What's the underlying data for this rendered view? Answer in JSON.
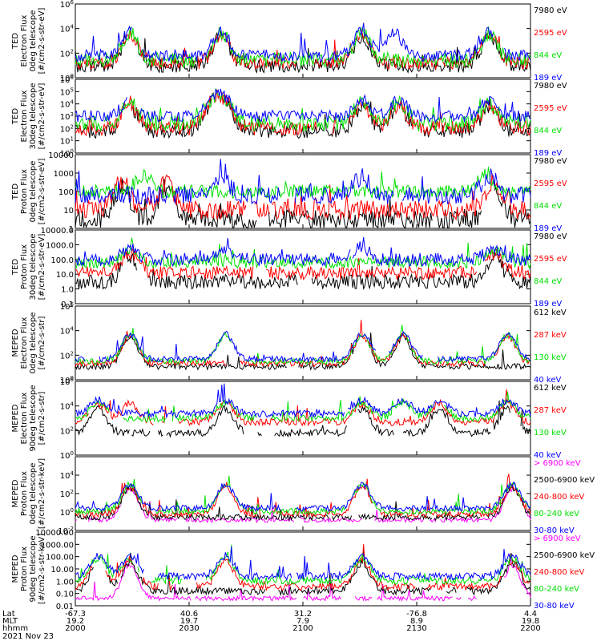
{
  "colors": {
    "black": "#000000",
    "red": "#ff0000",
    "green": "#00e000",
    "blue": "#0000ff",
    "magenta": "#ff00ff"
  },
  "chart_data": [
    {
      "type": "line",
      "scale": "log",
      "ylim": [
        1,
        1000000
      ],
      "ticks": [
        {
          "v": 1,
          "t": "10^0"
        },
        {
          "v": 100,
          "t": "10^2"
        },
        {
          "v": 10000,
          "t": "10^4"
        },
        {
          "v": 1000000,
          "t": "10^6"
        }
      ],
      "ylabel": [
        "TED",
        "Electron Flux",
        "0deg telescope",
        "[#/cm2-s-str-eV]"
      ],
      "series": [
        {
          "name": "7980 eV",
          "color": "black",
          "level": 0.16,
          "peaks": [
            0.12,
            0.32,
            0.63,
            0.91
          ],
          "noise": 0.09,
          "gapProb": 0.22
        },
        {
          "name": "2595 eV",
          "color": "red",
          "level": 0.2,
          "peaks": [
            0.12,
            0.32,
            0.63,
            0.91
          ],
          "noise": 0.09,
          "gapProb": 0.18
        },
        {
          "name": "844 eV",
          "color": "green",
          "level": 0.24,
          "peaks": [
            0.12,
            0.32,
            0.63,
            0.91
          ],
          "noise": 0.1,
          "gapProb": 0.12
        },
        {
          "name": "189 eV",
          "color": "blue",
          "level": 0.3,
          "peaks": [
            0.12,
            0.32,
            0.63,
            0.7,
            0.91
          ],
          "noise": 0.08,
          "gapProb": 0.08
        }
      ]
    },
    {
      "type": "line",
      "scale": "log",
      "ylim": [
        1,
        1000000
      ],
      "ticks": [
        {
          "v": 1,
          "t": "10^0"
        },
        {
          "v": 10,
          "t": "10^1"
        },
        {
          "v": 100,
          "t": "10^2"
        },
        {
          "v": 1000,
          "t": "10^3"
        },
        {
          "v": 10000,
          "t": "10^4"
        },
        {
          "v": 100000,
          "t": "10^5"
        },
        {
          "v": 1000000,
          "t": "10^6"
        }
      ],
      "ylabel": [
        "TED",
        "Electron Flux",
        "30deg telescope",
        "[#/cm2-s-str-eV]"
      ],
      "series": [
        {
          "name": "7980 eV",
          "color": "black",
          "level": 0.3,
          "peaks": [
            0.12,
            0.3,
            0.33,
            0.63,
            0.71,
            0.91
          ],
          "noise": 0.1,
          "gapProb": 0.22
        },
        {
          "name": "2595 eV",
          "color": "red",
          "level": 0.34,
          "peaks": [
            0.12,
            0.3,
            0.33,
            0.63,
            0.71,
            0.91
          ],
          "noise": 0.1,
          "gapProb": 0.18
        },
        {
          "name": "844 eV",
          "color": "green",
          "level": 0.4,
          "peaks": [
            0.12,
            0.3,
            0.33,
            0.63,
            0.71,
            0.91
          ],
          "noise": 0.11,
          "gapProb": 0.12
        },
        {
          "name": "189 eV",
          "color": "blue",
          "level": 0.5,
          "peaks": [
            0.12,
            0.3,
            0.33,
            0.63,
            0.71,
            0.91
          ],
          "noise": 0.08,
          "gapProb": 0.08
        }
      ]
    },
    {
      "type": "line",
      "scale": "log",
      "ylim": [
        1,
        10000
      ],
      "ticks": [
        {
          "v": 1,
          "t": "1"
        },
        {
          "v": 10,
          "t": "10"
        },
        {
          "v": 100,
          "t": "100"
        },
        {
          "v": 1000,
          "t": "1000"
        },
        {
          "v": 10000,
          "t": "10000"
        }
      ],
      "ylabel": [
        "TED",
        "Proton Flux",
        "0deg telescope",
        "[#/cm2-s-str-eV]"
      ],
      "series": [
        {
          "name": "7980 eV",
          "color": "black",
          "level": 0.12,
          "peaks": [
            0.1,
            0.2,
            0.92
          ],
          "noise": 0.14,
          "gapProb": 0.25
        },
        {
          "name": "2595 eV",
          "color": "red",
          "level": 0.25,
          "peaks": [
            0.1,
            0.2,
            0.92
          ],
          "noise": 0.13,
          "gapProb": 0.2
        },
        {
          "name": "844 eV",
          "color": "green",
          "level": 0.5,
          "peaks": [
            0.15,
            0.9
          ],
          "noise": 0.09,
          "gapProb": 0.06
        },
        {
          "name": "189 eV",
          "color": "blue",
          "level": 0.45,
          "peaks": [
            0.32,
            0.63,
            0.91
          ],
          "noise": 0.12,
          "gapProb": 0.15
        }
      ]
    },
    {
      "type": "line",
      "scale": "log",
      "ylim": [
        0.1,
        10000
      ],
      "ticks": [
        {
          "v": 0.1,
          "t": "0.1"
        },
        {
          "v": 1,
          "t": "1.0"
        },
        {
          "v": 10,
          "t": "10.0"
        },
        {
          "v": 100,
          "t": "100.0"
        },
        {
          "v": 1000,
          "t": "1000.0"
        },
        {
          "v": 10000,
          "t": "10000.0"
        }
      ],
      "ylabel": [
        "TED",
        "Proton Flux",
        "30deg telescope",
        "[#/cm2-s-str-eV]"
      ],
      "series": [
        {
          "name": "7980 eV",
          "color": "black",
          "level": 0.3,
          "peaks": [
            0.12,
            0.92
          ],
          "noise": 0.1,
          "gapProb": 0.2
        },
        {
          "name": "2595 eV",
          "color": "red",
          "level": 0.42,
          "peaks": [
            0.12,
            0.92
          ],
          "noise": 0.09,
          "gapProb": 0.15
        },
        {
          "name": "844 eV",
          "color": "green",
          "level": 0.56,
          "peaks": [
            0.12,
            0.92
          ],
          "noise": 0.08,
          "gapProb": 0.05
        },
        {
          "name": "189 eV",
          "color": "blue",
          "level": 0.6,
          "peaks": [
            0.12,
            0.33,
            0.63,
            0.92
          ],
          "noise": 0.09,
          "gapProb": 0.1
        }
      ]
    },
    {
      "type": "line",
      "scale": "log",
      "ylim": [
        1,
        1000000
      ],
      "ticks": [
        {
          "v": 1,
          "t": "10^0"
        },
        {
          "v": 100,
          "t": "10^2"
        },
        {
          "v": 10000,
          "t": "10^4"
        },
        {
          "v": 1000000,
          "t": "10^6"
        }
      ],
      "ylabel": [
        "MEPED",
        "Electron Flux",
        "0deg telescope",
        "[#/cm2-s-str]"
      ],
      "series": [
        {
          "name": "612 keV",
          "color": "black",
          "level": 0.18,
          "peaks": [
            0.12,
            0.63,
            0.72
          ],
          "noise": 0.04,
          "gapProb": 0.25
        },
        {
          "name": "287 keV",
          "color": "red",
          "level": 0.22,
          "peaks": [
            0.12,
            0.63,
            0.72,
            0.95
          ],
          "noise": 0.04,
          "gapProb": 0.2
        },
        {
          "name": "130 keV",
          "color": "green",
          "level": 0.25,
          "peaks": [
            0.12,
            0.33,
            0.63,
            0.72,
            0.95
          ],
          "noise": 0.04,
          "gapProb": 0.1
        },
        {
          "name": "40 keV",
          "color": "blue",
          "level": 0.28,
          "peaks": [
            0.12,
            0.33,
            0.63,
            0.72,
            0.95
          ],
          "noise": 0.04,
          "gapProb": 0.08
        }
      ]
    },
    {
      "type": "line",
      "scale": "log",
      "ylim": [
        1,
        1000000
      ],
      "ticks": [
        {
          "v": 1,
          "t": "10^0"
        },
        {
          "v": 100,
          "t": "10^2"
        },
        {
          "v": 10000,
          "t": "10^4"
        },
        {
          "v": 1000000,
          "t": "10^6"
        }
      ],
      "ylabel": [
        "MEPED",
        "Electron Flux",
        "90deg telescope",
        "[#/cm2-s-str]"
      ],
      "series": [
        {
          "name": "612 keV",
          "color": "black",
          "level": 0.3,
          "peaks": [
            0.05,
            0.33,
            0.63,
            0.8,
            0.95
          ],
          "noise": 0.05,
          "gapProb": 0.25
        },
        {
          "name": "287 keV",
          "color": "red",
          "level": 0.45,
          "peaks": [
            0.05,
            0.12,
            0.33,
            0.63,
            0.8,
            0.95
          ],
          "noise": 0.05,
          "gapProb": 0.15
        },
        {
          "name": "130 keV",
          "color": "green",
          "level": 0.5,
          "peaks": [
            0.05,
            0.33,
            0.63,
            0.72,
            0.8,
            0.95
          ],
          "noise": 0.05,
          "gapProb": 0.1
        },
        {
          "name": "40 keV",
          "color": "blue",
          "level": 0.56,
          "peaks": [
            0.05,
            0.33,
            0.63,
            0.72,
            0.8,
            0.95
          ],
          "noise": 0.05,
          "gapProb": 0.08
        }
      ]
    },
    {
      "type": "line",
      "scale": "log",
      "ylim": [
        0.01,
        1000000
      ],
      "ticks": [
        {
          "v": 0.01,
          "t": "10^-2"
        },
        {
          "v": 1,
          "t": "10^0"
        },
        {
          "v": 100,
          "t": "10^2"
        },
        {
          "v": 10000,
          "t": "10^4"
        }
      ],
      "ylabel": [
        "MEPED",
        "Proton Flux",
        "0deg telescope",
        "[#/cm2-s-str-keV]"
      ],
      "series": [
        {
          "name": "> 6900 keV",
          "color": "magenta",
          "level": 0.14,
          "peaks": [
            0.12,
            0.96
          ],
          "noise": 0.03,
          "gapProb": 0.4
        },
        {
          "name": "2500-6900 keV",
          "color": "black",
          "level": 0.18,
          "peaks": [
            0.12,
            0.96
          ],
          "noise": 0.04,
          "gapProb": 0.35
        },
        {
          "name": "240-800 keV",
          "color": "red",
          "level": 0.22,
          "peaks": [
            0.12,
            0.33,
            0.63,
            0.96
          ],
          "noise": 0.04,
          "gapProb": 0.3
        },
        {
          "name": "80-240 keV",
          "color": "green",
          "level": 0.26,
          "peaks": [
            0.12,
            0.33,
            0.63,
            0.96
          ],
          "noise": 0.04,
          "gapProb": 0.2
        },
        {
          "name": "30-80 keV",
          "color": "blue",
          "level": 0.3,
          "peaks": [
            0.12,
            0.33,
            0.63,
            0.96
          ],
          "noise": 0.04,
          "gapProb": 0.15
        }
      ]
    },
    {
      "type": "line",
      "scale": "log",
      "ylim": [
        0.01,
        10000
      ],
      "ticks": [
        {
          "v": 0.01,
          "t": "0.01"
        },
        {
          "v": 0.1,
          "t": "0.10"
        },
        {
          "v": 1,
          "t": "1.00"
        },
        {
          "v": 10,
          "t": "10.00"
        },
        {
          "v": 100,
          "t": "100.00"
        },
        {
          "v": 1000,
          "t": "1000.00"
        },
        {
          "v": 10000,
          "t": "10000.00"
        }
      ],
      "ylabel": [
        "MEPED",
        "Proton Flux",
        "90deg telescope",
        "[#/cm2-s-str-keV]"
      ],
      "series": [
        {
          "name": "> 6900 keV",
          "color": "magenta",
          "level": 0.1,
          "peaks": [
            0.12,
            0.96
          ],
          "noise": 0.03,
          "gapProb": 0.35
        },
        {
          "name": "2500-6900 keV",
          "color": "black",
          "level": 0.2,
          "peaks": [
            0.05,
            0.12,
            0.63,
            0.96
          ],
          "noise": 0.05,
          "gapProb": 0.3
        },
        {
          "name": "240-800 keV",
          "color": "red",
          "level": 0.26,
          "peaks": [
            0.05,
            0.12,
            0.33,
            0.63,
            0.96
          ],
          "noise": 0.05,
          "gapProb": 0.25
        },
        {
          "name": "80-240 keV",
          "color": "green",
          "level": 0.34,
          "peaks": [
            0.05,
            0.12,
            0.33,
            0.63,
            0.96
          ],
          "noise": 0.05,
          "gapProb": 0.15
        },
        {
          "name": "30-80 keV",
          "color": "blue",
          "level": 0.4,
          "peaks": [
            0.05,
            0.12,
            0.33,
            0.63,
            0.96
          ],
          "noise": 0.05,
          "gapProb": 0.1
        }
      ]
    }
  ],
  "xaxis": {
    "row_labels": [
      "Lat",
      "MLT",
      "hhmm"
    ],
    "ticks": [
      {
        "frac": 0.0,
        "lat": "-67.3",
        "mlt": "19.2",
        "hhmm": "2000"
      },
      {
        "frac": 0.25,
        "lat": "40.6",
        "mlt": "19.7",
        "hhmm": "2030"
      },
      {
        "frac": 0.5,
        "lat": "31.2",
        "mlt": "7.9",
        "hhmm": "2100"
      },
      {
        "frac": 0.75,
        "lat": "-76.8",
        "mlt": "8.9",
        "hhmm": "2130"
      },
      {
        "frac": 1.0,
        "lat": "4.4",
        "mlt": "19.8",
        "hhmm": "2200"
      }
    ],
    "date": "2021 Nov 23"
  }
}
